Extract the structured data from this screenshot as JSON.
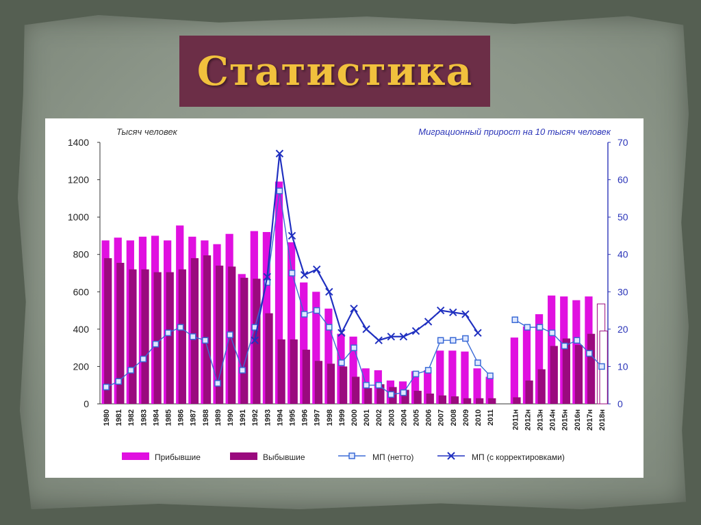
{
  "slide": {
    "title": "Статистика"
  },
  "colors": {
    "background": "#555f52",
    "paper": "#8d978a",
    "title_box": "#6c2e47",
    "title_text": "#f1c13d",
    "arrivals": "#e010e0",
    "departures": "#9a0a7e",
    "mp_net": "#3a6ad6",
    "mp_corrected": "#2030c0"
  },
  "chart_data": {
    "type": "bar",
    "title": "",
    "ylabel_left": "Тысяч человек",
    "ylabel_right": "Миграционный прирост на 10 тысяч человек",
    "ylim_left": [
      0,
      1400
    ],
    "yticks_left": [
      "0",
      "200",
      "400",
      "600",
      "800",
      "1000",
      "1200",
      "1400"
    ],
    "ylim_right": [
      0,
      70
    ],
    "yticks_right": [
      "0",
      "10",
      "20",
      "30",
      "40",
      "50",
      "60",
      "70"
    ],
    "grid": false,
    "legend_position": "bottom",
    "categories": [
      "1980",
      "1981",
      "1982",
      "1983",
      "1984",
      "1985",
      "1986",
      "1987",
      "1988",
      "1989",
      "1990",
      "1991",
      "1992",
      "1993",
      "1994",
      "1995",
      "1996",
      "1997",
      "1998",
      "1999",
      "2000",
      "2001",
      "2002",
      "2003",
      "2004",
      "2005",
      "2006",
      "2007",
      "2008",
      "2009",
      "2010",
      "2011",
      "",
      "2011н",
      "2012н",
      "2013н",
      "2014н",
      "2015н",
      "2016н",
      "2017н",
      "2018н"
    ],
    "series": [
      {
        "name": "Прибывшие",
        "kind": "bar",
        "axis": "left",
        "values": [
          875,
          890,
          875,
          895,
          900,
          875,
          955,
          895,
          875,
          855,
          910,
          695,
          925,
          920,
          1190,
          865,
          650,
          600,
          510,
          375,
          360,
          190,
          180,
          125,
          120,
          175,
          180,
          285,
          285,
          280,
          190,
          145,
          null,
          355,
          415,
          480,
          580,
          575,
          555,
          575,
          535
        ]
      },
      {
        "name": "Выбывшие",
        "kind": "bar",
        "axis": "left",
        "values": [
          780,
          755,
          720,
          720,
          705,
          705,
          720,
          780,
          795,
          740,
          735,
          675,
          670,
          485,
          345,
          345,
          290,
          230,
          215,
          200,
          145,
          85,
          105,
          90,
          75,
          70,
          55,
          45,
          40,
          30,
          30,
          30,
          null,
          35,
          125,
          185,
          310,
          350,
          315,
          375,
          390
        ]
      },
      {
        "name": "МП  (нетто)",
        "kind": "line",
        "axis": "right",
        "values": [
          4.5,
          6,
          9,
          12,
          16,
          19,
          20.5,
          18,
          17,
          5.5,
          18.5,
          9,
          20.5,
          32.5,
          57,
          35,
          24,
          25,
          20.5,
          11,
          15,
          5,
          5,
          2.5,
          3,
          8,
          9,
          17,
          17,
          17.5,
          11,
          7.5,
          null,
          22.5,
          20.5,
          20.5,
          19,
          15.5,
          17,
          13.5,
          10
        ]
      },
      {
        "name": "МП  (с корректировками)",
        "kind": "line",
        "axis": "right",
        "values": [
          null,
          null,
          null,
          null,
          null,
          null,
          null,
          null,
          null,
          null,
          null,
          null,
          17,
          34,
          67,
          45,
          34.5,
          36,
          30,
          19,
          25.5,
          20,
          17,
          18,
          18,
          19.5,
          22,
          25,
          24.5,
          24,
          19,
          null,
          null,
          null,
          null,
          null,
          null,
          null,
          null,
          null,
          null
        ]
      }
    ]
  }
}
